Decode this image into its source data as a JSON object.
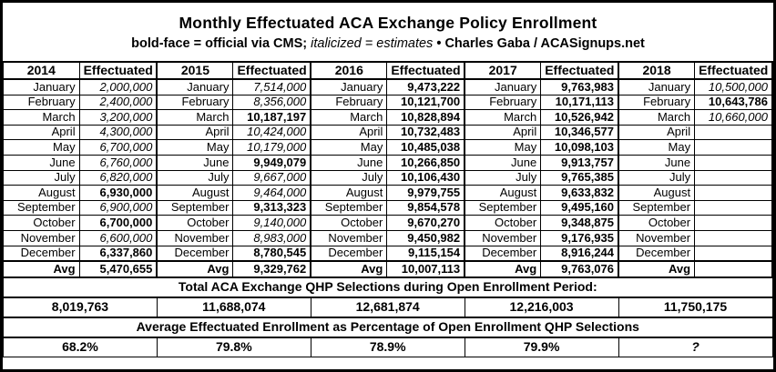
{
  "title": "Monthly Effectuated ACA Exchange Policy Enrollment",
  "subtitle": {
    "bold_note": "bold-face = official via CMS;",
    "italic_note": "italicized = estimates",
    "bullet": "•",
    "credit": "Charles Gaba / ACASignups.net"
  },
  "table": {
    "effectuated_header": "Effectuated",
    "avg_label": "Avg",
    "months": [
      "January",
      "February",
      "March",
      "April",
      "May",
      "June",
      "July",
      "August",
      "September",
      "October",
      "November",
      "December"
    ],
    "years": [
      {
        "year": "2014",
        "values": [
          "2,000,000",
          "2,400,000",
          "3,200,000",
          "4,300,000",
          "6,700,000",
          "6,760,000",
          "6,820,000",
          "6,930,000",
          "6,900,000",
          "6,700,000",
          "6,600,000",
          "6,337,860"
        ],
        "styles": [
          "e",
          "e",
          "e",
          "e",
          "e",
          "e",
          "e",
          "o",
          "e",
          "o",
          "e",
          "o"
        ],
        "avg": "5,470,655"
      },
      {
        "year": "2015",
        "values": [
          "7,514,000",
          "8,356,000",
          "10,187,197",
          "10,424,000",
          "10,179,000",
          "9,949,079",
          "9,667,000",
          "9,464,000",
          "9,313,323",
          "9,140,000",
          "8,983,000",
          "8,780,545"
        ],
        "styles": [
          "e",
          "e",
          "o",
          "e",
          "e",
          "o",
          "e",
          "e",
          "o",
          "e",
          "e",
          "o"
        ],
        "avg": "9,329,762"
      },
      {
        "year": "2016",
        "values": [
          "9,473,222",
          "10,121,700",
          "10,828,894",
          "10,732,483",
          "10,485,038",
          "10,266,850",
          "10,106,430",
          "9,979,755",
          "9,854,578",
          "9,670,270",
          "9,450,982",
          "9,115,154"
        ],
        "styles": [
          "o",
          "o",
          "o",
          "o",
          "o",
          "o",
          "o",
          "o",
          "o",
          "o",
          "o",
          "o"
        ],
        "avg": "10,007,113"
      },
      {
        "year": "2017",
        "values": [
          "9,763,983",
          "10,171,113",
          "10,526,942",
          "10,346,577",
          "10,098,103",
          "9,913,757",
          "9,765,385",
          "9,633,832",
          "9,495,160",
          "9,348,875",
          "9,176,935",
          "8,916,244"
        ],
        "styles": [
          "o",
          "o",
          "o",
          "o",
          "o",
          "o",
          "o",
          "o",
          "o",
          "o",
          "o",
          "o"
        ],
        "avg": "9,763,076"
      },
      {
        "year": "2018",
        "values": [
          "10,500,000",
          "10,643,786",
          "10,660,000",
          "",
          "",
          "",
          "",
          "",
          "",
          "",
          "",
          ""
        ],
        "styles": [
          "e",
          "o",
          "e",
          "",
          "",
          "",
          "",
          "",
          "",
          "",
          "",
          ""
        ],
        "avg": ""
      }
    ]
  },
  "totals": {
    "header": "Total ACA Exchange QHP Selections during Open Enrollment Period:",
    "values": [
      "8,019,763",
      "11,688,074",
      "12,681,874",
      "12,216,003",
      "11,750,175"
    ]
  },
  "percentages": {
    "header": "Average Effectuated Enrollment as Percentage of Open Enrollment QHP Selections",
    "values": [
      "68.2%",
      "79.8%",
      "78.9%",
      "79.9%",
      "?"
    ],
    "styles": [
      "o",
      "o",
      "o",
      "o",
      "oe"
    ]
  }
}
